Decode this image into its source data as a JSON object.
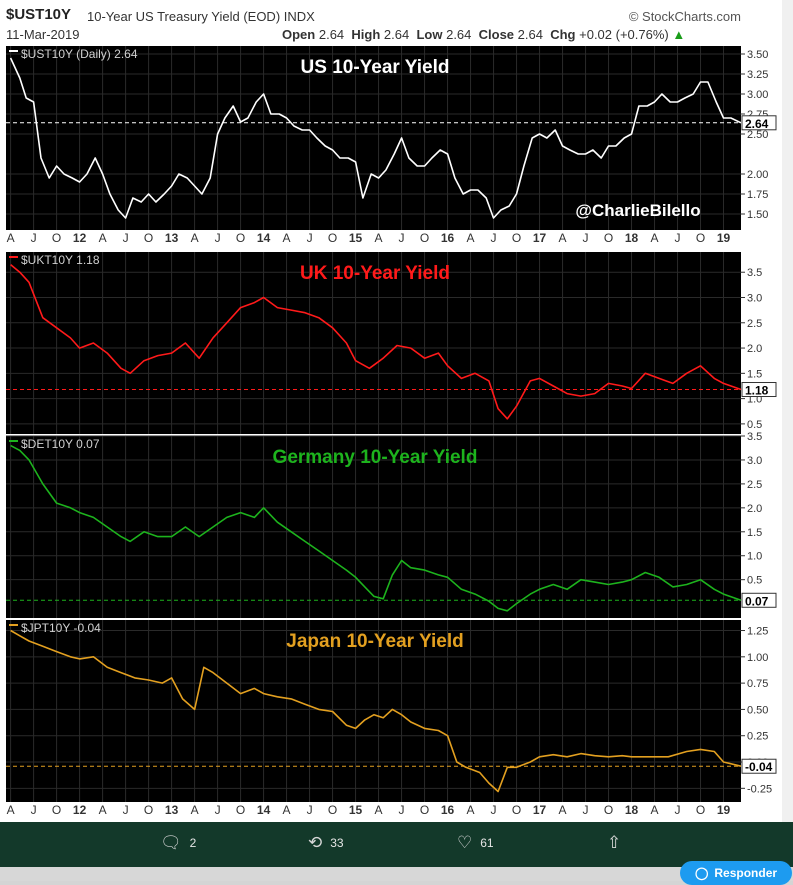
{
  "header": {
    "symbol": "$UST10Y",
    "description": "10-Year US Treasury Yield (EOD)",
    "exchange": "INDX",
    "date": "11-Mar-2019",
    "brand": "© StockCharts.com",
    "open_label": "Open",
    "open": "2.64",
    "high_label": "High",
    "high": "2.64",
    "low_label": "Low",
    "low": "2.64",
    "close_label": "Close",
    "close": "2.64",
    "chg_label": "Chg",
    "chg": "+0.02 (+0.76%)"
  },
  "tweet_actions": {
    "replies": "2",
    "retweets": "33",
    "likes": "61",
    "respond_label": "Responder"
  },
  "chart_data": [
    {
      "type": "line",
      "legend": "$UST10Y (Daily) 2.64",
      "title": "US 10-Year Yield",
      "watermark": "@CharlieBilello",
      "color": "#ffffff",
      "last_value": "2.64",
      "last_numeric": 2.64,
      "ylim": [
        1.3,
        3.6
      ],
      "yticks": [
        {
          "v": 3.5,
          "t": "3.50"
        },
        {
          "v": 3.25,
          "t": "3.25"
        },
        {
          "v": 3.0,
          "t": "3.00"
        },
        {
          "v": 2.75,
          "t": "2.75"
        },
        {
          "v": 2.5,
          "t": "2.50"
        },
        {
          "v": 2.0,
          "t": "2.00"
        },
        {
          "v": 1.75,
          "t": "1.75"
        },
        {
          "v": 1.5,
          "t": "1.50"
        }
      ],
      "x": [
        2011.25,
        2011.35,
        2011.42,
        2011.5,
        2011.58,
        2011.67,
        2011.75,
        2011.83,
        2011.92,
        2012.0,
        2012.08,
        2012.17,
        2012.25,
        2012.33,
        2012.42,
        2012.5,
        2012.58,
        2012.67,
        2012.75,
        2012.83,
        2012.92,
        2013.0,
        2013.08,
        2013.17,
        2013.25,
        2013.33,
        2013.42,
        2013.5,
        2013.58,
        2013.67,
        2013.75,
        2013.83,
        2013.92,
        2014.0,
        2014.08,
        2014.17,
        2014.25,
        2014.33,
        2014.42,
        2014.5,
        2014.58,
        2014.67,
        2014.75,
        2014.83,
        2014.92,
        2015.0,
        2015.08,
        2015.17,
        2015.25,
        2015.33,
        2015.42,
        2015.5,
        2015.58,
        2015.67,
        2015.75,
        2015.83,
        2015.92,
        2016.0,
        2016.08,
        2016.17,
        2016.25,
        2016.33,
        2016.42,
        2016.5,
        2016.58,
        2016.67,
        2016.75,
        2016.83,
        2016.92,
        2017.0,
        2017.08,
        2017.17,
        2017.25,
        2017.33,
        2017.42,
        2017.5,
        2017.58,
        2017.67,
        2017.75,
        2017.83,
        2017.92,
        2018.0,
        2018.08,
        2018.17,
        2018.25,
        2018.33,
        2018.42,
        2018.5,
        2018.58,
        2018.67,
        2018.75,
        2018.83,
        2018.92,
        2019.0,
        2019.08,
        2019.19
      ],
      "values": [
        3.45,
        3.2,
        2.95,
        2.9,
        2.2,
        1.95,
        2.1,
        2.0,
        1.95,
        1.9,
        2.0,
        2.2,
        2.0,
        1.75,
        1.55,
        1.45,
        1.7,
        1.65,
        1.75,
        1.65,
        1.75,
        1.85,
        2.0,
        1.95,
        1.85,
        1.75,
        1.95,
        2.5,
        2.7,
        2.85,
        2.65,
        2.7,
        2.9,
        3.0,
        2.75,
        2.75,
        2.7,
        2.6,
        2.55,
        2.55,
        2.45,
        2.35,
        2.3,
        2.2,
        2.2,
        2.15,
        1.7,
        2.0,
        1.95,
        2.05,
        2.25,
        2.45,
        2.2,
        2.1,
        2.1,
        2.2,
        2.3,
        2.25,
        1.95,
        1.75,
        1.8,
        1.8,
        1.7,
        1.45,
        1.55,
        1.6,
        1.75,
        2.1,
        2.45,
        2.5,
        2.45,
        2.55,
        2.35,
        2.3,
        2.25,
        2.25,
        2.3,
        2.2,
        2.35,
        2.35,
        2.45,
        2.5,
        2.85,
        2.85,
        2.9,
        3.0,
        2.9,
        2.9,
        2.95,
        3.0,
        3.15,
        3.15,
        2.9,
        2.7,
        2.7,
        2.64
      ]
    },
    {
      "type": "line",
      "legend": "$UKT10Y 1.18",
      "title": "UK 10-Year Yield",
      "color": "#ff1a1a",
      "last_value": "1.18",
      "last_numeric": 1.18,
      "ylim": [
        0.3,
        3.9
      ],
      "yticks": [
        {
          "v": 3.5,
          "t": "3.5"
        },
        {
          "v": 3.0,
          "t": "3.0"
        },
        {
          "v": 2.5,
          "t": "2.5"
        },
        {
          "v": 2.0,
          "t": "2.0"
        },
        {
          "v": 1.5,
          "t": "1.5"
        },
        {
          "v": 1.0,
          "t": "1.0"
        },
        {
          "v": 0.5,
          "t": "0.5"
        }
      ],
      "x": [
        2011.25,
        2011.35,
        2011.45,
        2011.6,
        2011.75,
        2011.9,
        2012.0,
        2012.15,
        2012.3,
        2012.45,
        2012.55,
        2012.7,
        2012.85,
        2013.0,
        2013.15,
        2013.3,
        2013.45,
        2013.6,
        2013.75,
        2013.9,
        2014.0,
        2014.15,
        2014.3,
        2014.45,
        2014.6,
        2014.75,
        2014.9,
        2015.0,
        2015.15,
        2015.3,
        2015.45,
        2015.6,
        2015.75,
        2015.9,
        2016.0,
        2016.15,
        2016.3,
        2016.45,
        2016.55,
        2016.65,
        2016.75,
        2016.9,
        2017.0,
        2017.15,
        2017.3,
        2017.45,
        2017.6,
        2017.75,
        2017.9,
        2018.0,
        2018.15,
        2018.3,
        2018.45,
        2018.6,
        2018.75,
        2018.9,
        2019.0,
        2019.19
      ],
      "values": [
        3.65,
        3.5,
        3.3,
        2.6,
        2.4,
        2.2,
        2.0,
        2.1,
        1.9,
        1.6,
        1.5,
        1.75,
        1.85,
        1.9,
        2.1,
        1.8,
        2.2,
        2.5,
        2.8,
        2.9,
        3.0,
        2.8,
        2.75,
        2.7,
        2.6,
        2.4,
        2.1,
        1.75,
        1.6,
        1.8,
        2.05,
        2.0,
        1.8,
        1.9,
        1.65,
        1.4,
        1.5,
        1.35,
        0.8,
        0.6,
        0.85,
        1.35,
        1.4,
        1.25,
        1.1,
        1.05,
        1.1,
        1.3,
        1.25,
        1.2,
        1.5,
        1.4,
        1.3,
        1.5,
        1.65,
        1.4,
        1.3,
        1.18
      ]
    },
    {
      "type": "line",
      "legend": "$DET10Y 0.07",
      "title": "Germany 10-Year Yield",
      "color": "#1db31d",
      "last_value": "0.07",
      "last_numeric": 0.07,
      "ylim": [
        -0.3,
        3.5
      ],
      "yticks": [
        {
          "v": 3.5,
          "t": "3.5"
        },
        {
          "v": 3.0,
          "t": "3.0"
        },
        {
          "v": 2.5,
          "t": "2.5"
        },
        {
          "v": 2.0,
          "t": "2.0"
        },
        {
          "v": 1.5,
          "t": "1.5"
        },
        {
          "v": 1.0,
          "t": "1.0"
        },
        {
          "v": 0.5,
          "t": "0.5"
        }
      ],
      "x": [
        2011.25,
        2011.35,
        2011.45,
        2011.6,
        2011.75,
        2011.9,
        2012.0,
        2012.15,
        2012.3,
        2012.45,
        2012.55,
        2012.7,
        2012.85,
        2013.0,
        2013.15,
        2013.3,
        2013.45,
        2013.6,
        2013.75,
        2013.9,
        2014.0,
        2014.15,
        2014.3,
        2014.45,
        2014.6,
        2014.75,
        2014.9,
        2015.0,
        2015.1,
        2015.2,
        2015.3,
        2015.4,
        2015.5,
        2015.6,
        2015.75,
        2015.9,
        2016.0,
        2016.15,
        2016.3,
        2016.45,
        2016.55,
        2016.65,
        2016.75,
        2016.9,
        2017.0,
        2017.15,
        2017.3,
        2017.45,
        2017.6,
        2017.75,
        2017.9,
        2018.0,
        2018.15,
        2018.3,
        2018.45,
        2018.6,
        2018.75,
        2018.9,
        2019.0,
        2019.19
      ],
      "values": [
        3.3,
        3.2,
        3.0,
        2.5,
        2.1,
        2.0,
        1.9,
        1.8,
        1.6,
        1.4,
        1.3,
        1.5,
        1.4,
        1.4,
        1.6,
        1.4,
        1.6,
        1.8,
        1.9,
        1.8,
        2.0,
        1.7,
        1.5,
        1.3,
        1.1,
        0.9,
        0.7,
        0.55,
        0.35,
        0.15,
        0.1,
        0.6,
        0.9,
        0.75,
        0.7,
        0.6,
        0.55,
        0.3,
        0.2,
        0.05,
        -0.1,
        -0.15,
        0.0,
        0.2,
        0.3,
        0.4,
        0.3,
        0.5,
        0.45,
        0.4,
        0.45,
        0.5,
        0.65,
        0.55,
        0.35,
        0.4,
        0.5,
        0.3,
        0.2,
        0.07
      ]
    },
    {
      "type": "line",
      "legend": "$JPT10Y -0.04",
      "title": "Japan 10-Year Yield",
      "color": "#e3a020",
      "last_value": "-0.04",
      "last_numeric": -0.04,
      "ylim": [
        -0.38,
        1.35
      ],
      "yticks": [
        {
          "v": 1.25,
          "t": "1.25"
        },
        {
          "v": 1.0,
          "t": "1.00"
        },
        {
          "v": 0.75,
          "t": "0.75"
        },
        {
          "v": 0.5,
          "t": "0.50"
        },
        {
          "v": 0.25,
          "t": "0.25"
        },
        {
          "v": 0.0,
          "t": "0.00"
        },
        {
          "v": -0.25,
          "t": "-0.25"
        }
      ],
      "x": [
        2011.25,
        2011.35,
        2011.45,
        2011.6,
        2011.75,
        2011.9,
        2012.0,
        2012.15,
        2012.3,
        2012.45,
        2012.6,
        2012.75,
        2012.9,
        2013.0,
        2013.12,
        2013.25,
        2013.35,
        2013.45,
        2013.6,
        2013.75,
        2013.9,
        2014.0,
        2014.15,
        2014.3,
        2014.45,
        2014.6,
        2014.75,
        2014.9,
        2015.0,
        2015.1,
        2015.2,
        2015.3,
        2015.4,
        2015.5,
        2015.6,
        2015.75,
        2015.9,
        2016.0,
        2016.1,
        2016.2,
        2016.35,
        2016.45,
        2016.55,
        2016.65,
        2016.75,
        2016.9,
        2017.0,
        2017.15,
        2017.3,
        2017.45,
        2017.6,
        2017.75,
        2017.9,
        2018.0,
        2018.2,
        2018.4,
        2018.6,
        2018.75,
        2018.9,
        2019.0,
        2019.19
      ],
      "values": [
        1.25,
        1.2,
        1.15,
        1.1,
        1.05,
        1.0,
        0.98,
        1.0,
        0.9,
        0.85,
        0.8,
        0.78,
        0.75,
        0.8,
        0.6,
        0.5,
        0.9,
        0.85,
        0.75,
        0.65,
        0.7,
        0.65,
        0.62,
        0.6,
        0.55,
        0.5,
        0.48,
        0.35,
        0.32,
        0.4,
        0.45,
        0.42,
        0.5,
        0.45,
        0.38,
        0.32,
        0.3,
        0.25,
        0.0,
        -0.05,
        -0.1,
        -0.2,
        -0.28,
        -0.05,
        -0.05,
        0.0,
        0.05,
        0.07,
        0.05,
        0.08,
        0.06,
        0.05,
        0.06,
        0.05,
        0.05,
        0.05,
        0.1,
        0.12,
        0.1,
        0.0,
        -0.04
      ]
    }
  ],
  "x_axis": {
    "labels": [
      {
        "x": 2011.25,
        "t": "A"
      },
      {
        "x": 2011.5,
        "t": "J"
      },
      {
        "x": 2011.75,
        "t": "O"
      },
      {
        "x": 2012.0,
        "t": "12"
      },
      {
        "x": 2012.25,
        "t": "A"
      },
      {
        "x": 2012.5,
        "t": "J"
      },
      {
        "x": 2012.75,
        "t": "O"
      },
      {
        "x": 2013.0,
        "t": "13"
      },
      {
        "x": 2013.25,
        "t": "A"
      },
      {
        "x": 2013.5,
        "t": "J"
      },
      {
        "x": 2013.75,
        "t": "O"
      },
      {
        "x": 2014.0,
        "t": "14"
      },
      {
        "x": 2014.25,
        "t": "A"
      },
      {
        "x": 2014.5,
        "t": "J"
      },
      {
        "x": 2014.75,
        "t": "O"
      },
      {
        "x": 2015.0,
        "t": "15"
      },
      {
        "x": 2015.25,
        "t": "A"
      },
      {
        "x": 2015.5,
        "t": "J"
      },
      {
        "x": 2015.75,
        "t": "O"
      },
      {
        "x": 2016.0,
        "t": "16"
      },
      {
        "x": 2016.25,
        "t": "A"
      },
      {
        "x": 2016.5,
        "t": "J"
      },
      {
        "x": 2016.75,
        "t": "O"
      },
      {
        "x": 2017.0,
        "t": "17"
      },
      {
        "x": 2017.25,
        "t": "A"
      },
      {
        "x": 2017.5,
        "t": "J"
      },
      {
        "x": 2017.75,
        "t": "O"
      },
      {
        "x": 2018.0,
        "t": "18"
      },
      {
        "x": 2018.25,
        "t": "A"
      },
      {
        "x": 2018.5,
        "t": "J"
      },
      {
        "x": 2018.75,
        "t": "O"
      },
      {
        "x": 2019.0,
        "t": "19"
      }
    ],
    "xlim": [
      2011.2,
      2019.19
    ]
  }
}
